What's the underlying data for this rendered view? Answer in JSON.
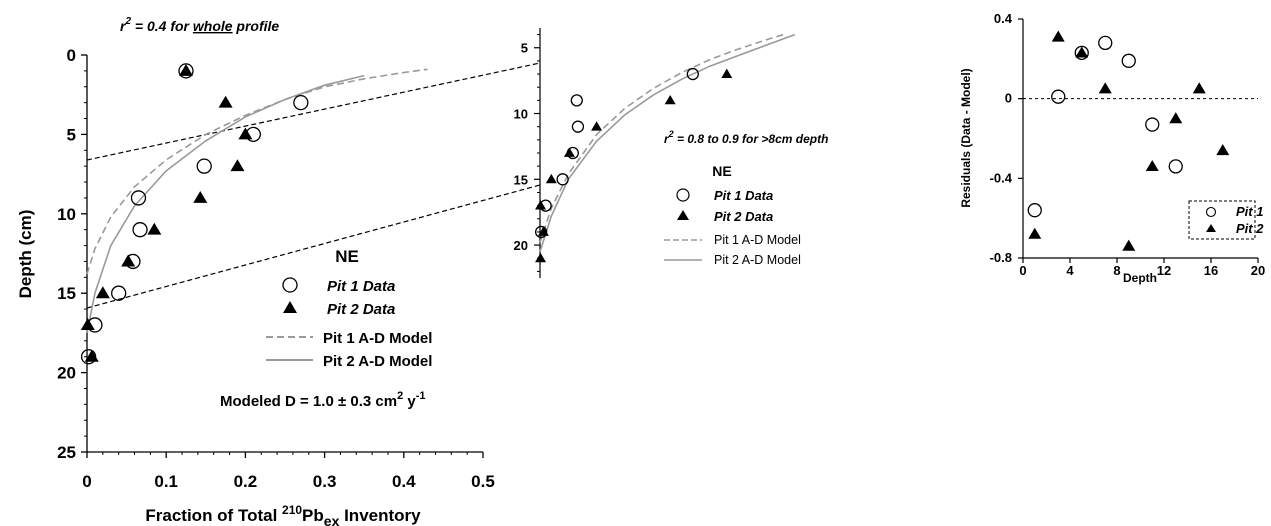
{
  "chart_data": [
    {
      "id": "main",
      "type": "scatter",
      "annotation_top": {
        "pre": "r",
        "sup": "2",
        "post": " = 0.4 for ",
        "underlined": "whole",
        "tail": " profile"
      },
      "xlabel": {
        "pre": "Fraction of Total ",
        "sup": "210",
        "mid": "Pb",
        "sub": "ex",
        "post": " Inventory"
      },
      "ylabel": "Depth (cm)",
      "xlim": [
        0,
        0.5
      ],
      "ylim": [
        0,
        25
      ],
      "y_inverted": true,
      "xticks": [
        "0",
        "0.1",
        "0.2",
        "0.3",
        "0.4",
        "0.5"
      ],
      "yticks": [
        "0",
        "5",
        "10",
        "15",
        "20",
        "25"
      ],
      "legend": {
        "title": "NE",
        "pit1_data": "Pit 1 Data",
        "pit2_data": "Pit 2 Data",
        "pit1_model": "Pit 1 A-D Model",
        "pit2_model": "Pit 2 A-D Model"
      },
      "modeled_d": {
        "pre": "Modeled D = 1.0 ± 0.3 cm",
        "sup1": "2",
        "mid": " y",
        "sup2": "-1"
      },
      "series": [
        {
          "name": "Pit 1 Data",
          "marker": "circle",
          "points": [
            [
              0.125,
              1
            ],
            [
              0.27,
              3
            ],
            [
              0.21,
              5
            ],
            [
              0.148,
              7
            ],
            [
              0.065,
              9
            ],
            [
              0.067,
              11
            ],
            [
              0.058,
              13
            ],
            [
              0.04,
              15
            ],
            [
              0.01,
              17
            ],
            [
              0.002,
              19
            ]
          ]
        },
        {
          "name": "Pit 2 Data",
          "marker": "triangle",
          "points": [
            [
              0.125,
              1
            ],
            [
              0.175,
              3
            ],
            [
              0.2,
              5
            ],
            [
              0.19,
              7
            ],
            [
              0.143,
              9
            ],
            [
              0.085,
              11
            ],
            [
              0.052,
              13
            ],
            [
              0.02,
              15
            ],
            [
              0.001,
              17
            ],
            [
              0.006,
              19
            ]
          ]
        },
        {
          "name": "Pit 1 A-D Model",
          "style": "dashed",
          "points": [
            [
              0.0,
              13.8
            ],
            [
              0.01,
              12.2
            ],
            [
              0.03,
              10.2
            ],
            [
              0.06,
              8.3
            ],
            [
              0.1,
              6.6
            ],
            [
              0.15,
              5.0
            ],
            [
              0.2,
              3.8
            ],
            [
              0.25,
              2.8
            ],
            [
              0.3,
              2.0
            ],
            [
              0.35,
              1.5
            ],
            [
              0.4,
              1.1
            ],
            [
              0.43,
              0.9
            ]
          ]
        },
        {
          "name": "Pit 2 A-D Model",
          "style": "solid",
          "points": [
            [
              0.0,
              17.5
            ],
            [
              0.01,
              15.0
            ],
            [
              0.03,
              12.0
            ],
            [
              0.06,
              9.5
            ],
            [
              0.1,
              7.3
            ],
            [
              0.15,
              5.4
            ],
            [
              0.2,
              3.9
            ],
            [
              0.25,
              2.8
            ],
            [
              0.3,
              1.9
            ],
            [
              0.35,
              1.3
            ]
          ]
        }
      ]
    },
    {
      "id": "inset",
      "type": "scatter",
      "annotation": {
        "pre": "r",
        "sup": "2",
        "post": " = 0.8 to 0.9 for >8cm depth"
      },
      "xlim": [
        0,
        0.5
      ],
      "ylim": [
        3.5,
        22.5
      ],
      "y_inverted": true,
      "yticks": [
        "5",
        "10",
        "15",
        "20"
      ],
      "legend": {
        "title": "NE",
        "pit1_data": "Pit 1 Data",
        "pit2_data": "Pit 2 Data",
        "pit1_model": "Pit 1 A-D Model",
        "pit2_model": "Pit 2 A-D Model"
      },
      "series": [
        {
          "name": "Pit 1 Data",
          "marker": "circle",
          "points": [
            [
              0.27,
              7
            ],
            [
              0.065,
              9
            ],
            [
              0.067,
              11
            ],
            [
              0.058,
              13
            ],
            [
              0.04,
              15
            ],
            [
              0.01,
              17
            ],
            [
              0.002,
              19
            ]
          ]
        },
        {
          "name": "Pit 2 Data",
          "marker": "triangle",
          "points": [
            [
              0.33,
              7
            ],
            [
              0.23,
              9
            ],
            [
              0.1,
              11
            ],
            [
              0.052,
              13
            ],
            [
              0.02,
              15
            ],
            [
              0.001,
              17
            ],
            [
              0.006,
              19
            ],
            [
              0.001,
              21
            ]
          ]
        },
        {
          "name": "Pit 1 A-D Model",
          "style": "dashed",
          "points": [
            [
              0.0,
              19.8
            ],
            [
              0.02,
              17.2
            ],
            [
              0.05,
              14.6
            ],
            [
              0.1,
              11.6
            ],
            [
              0.15,
              9.6
            ],
            [
              0.2,
              8.1
            ],
            [
              0.25,
              6.9
            ],
            [
              0.3,
              5.9
            ],
            [
              0.35,
              5.1
            ],
            [
              0.4,
              4.4
            ],
            [
              0.43,
              4.0
            ]
          ]
        },
        {
          "name": "Pit 2 A-D Model",
          "style": "solid",
          "points": [
            [
              0.0,
              20.5
            ],
            [
              0.02,
              17.8
            ],
            [
              0.05,
              15.0
            ],
            [
              0.1,
              12.1
            ],
            [
              0.15,
              10.1
            ],
            [
              0.2,
              8.6
            ],
            [
              0.25,
              7.4
            ],
            [
              0.3,
              6.4
            ],
            [
              0.35,
              5.6
            ],
            [
              0.4,
              4.8
            ],
            [
              0.45,
              4.0
            ]
          ]
        }
      ]
    },
    {
      "id": "residuals",
      "type": "scatter",
      "xlabel": "Depth",
      "ylabel": "Residuals (Data - Model)",
      "xlim": [
        0,
        20
      ],
      "ylim": [
        -0.8,
        0.4
      ],
      "xticks": [
        "0",
        "4",
        "8",
        "12",
        "16",
        "20"
      ],
      "yticks": [
        "0.4",
        "0",
        "-0.4",
        "-0.8"
      ],
      "zero_line": true,
      "legend": {
        "pit1": "Pit 1",
        "pit2": "Pit 2"
      },
      "series": [
        {
          "name": "Pit 1",
          "marker": "circle",
          "points": [
            [
              1,
              -0.56
            ],
            [
              3,
              0.01
            ],
            [
              5,
              0.23
            ],
            [
              7,
              0.28
            ],
            [
              9,
              0.19
            ],
            [
              11,
              -0.13
            ],
            [
              13,
              -0.34
            ]
          ]
        },
        {
          "name": "Pit 2",
          "marker": "triangle",
          "points": [
            [
              1,
              -0.68
            ],
            [
              3,
              0.31
            ],
            [
              5,
              0.23
            ],
            [
              7,
              0.05
            ],
            [
              9,
              -0.74
            ],
            [
              11,
              -0.34
            ],
            [
              13,
              -0.1
            ],
            [
              15,
              0.05
            ],
            [
              17,
              -0.26
            ]
          ]
        }
      ]
    }
  ]
}
